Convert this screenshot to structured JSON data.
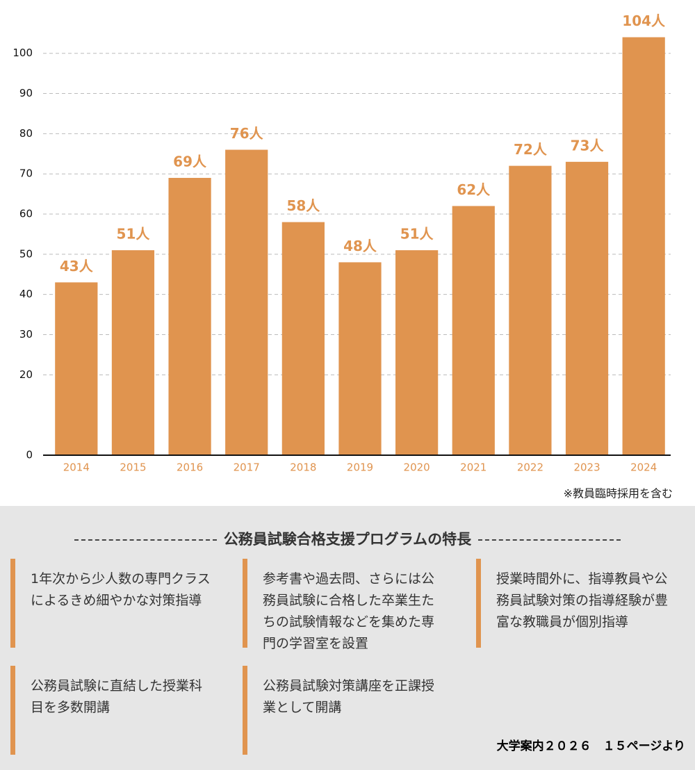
{
  "chart_data": {
    "type": "bar",
    "categories": [
      "2014",
      "2015",
      "2016",
      "2017",
      "2018",
      "2019",
      "2020",
      "2021",
      "2022",
      "2023",
      "2024"
    ],
    "values": [
      43,
      51,
      69,
      76,
      58,
      48,
      51,
      62,
      72,
      73,
      104
    ],
    "value_labels": [
      "43人",
      "51人",
      "69人",
      "76人",
      "58人",
      "48人",
      "51人",
      "62人",
      "72人",
      "73人",
      "104人"
    ],
    "color": "#e0944f",
    "ylim": [
      0,
      106
    ],
    "yticks": [
      0,
      20,
      30,
      40,
      50,
      60,
      70,
      80,
      90,
      100
    ],
    "grid": true,
    "annotation": "※教員臨時採用を含む"
  },
  "features": {
    "title": "公務員試験合格支援プログラムの特長",
    "items": [
      "1年次から少人数の専門クラスによるきめ細やかな対策指導",
      "参考書や過去問、さらには公務員試験に合格した卒業生たちの試験情報などを集めた専門の学習室を設置",
      "授業時間外に、指導教員や公務員試験対策の指導経験が豊富な教職員が個別指導",
      "公務員試験に直結した授業科目を多数開講",
      "公務員試験対策講座を正課授業として開講"
    ]
  },
  "source": "大学案内２０２６　１５ページより"
}
